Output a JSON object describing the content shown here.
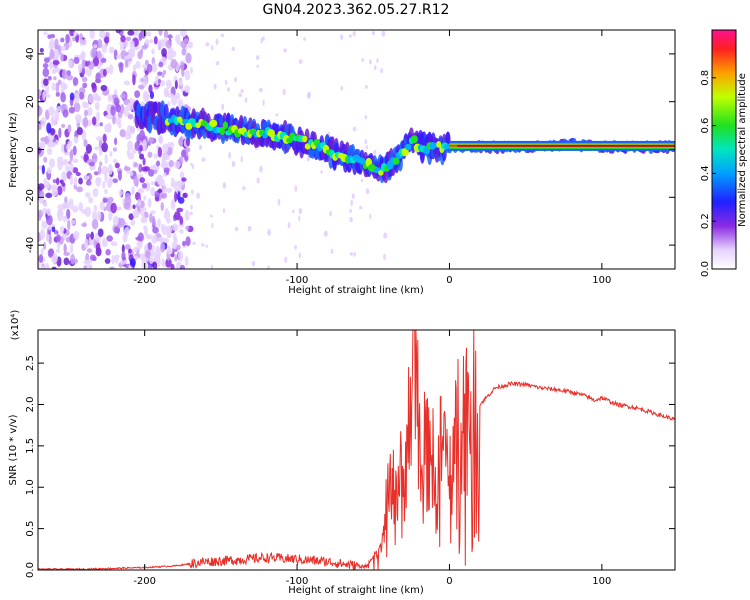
{
  "title": "GN04.2023.362.05.27.R12",
  "colors": {
    "snr_line": "#e8302a",
    "spec_low": "#8a2be2",
    "spec_mid": "#00e5c0",
    "spec_high": "#ff2020",
    "axis": "#000000"
  },
  "chart_data": [
    {
      "type": "heatmap",
      "title": "",
      "xlabel": "Height of straight line (km)",
      "ylabel": "Frequency (Hz)",
      "xlim": [
        -270,
        148
      ],
      "ylim": [
        -50,
        50
      ],
      "x_ticks": [
        -200,
        -100,
        0,
        100
      ],
      "y_ticks": [
        -40,
        -20,
        0,
        20,
        40
      ],
      "ridge": {
        "x": [
          -200,
          -180,
          -160,
          -140,
          -120,
          -100,
          -85,
          -70,
          -55,
          -45,
          -38,
          -30,
          -25,
          -20,
          -10,
          0,
          10,
          30,
          60,
          80,
          100,
          148
        ],
        "y": [
          15,
          12,
          10,
          8,
          7,
          4,
          1,
          -3,
          -6,
          -9,
          -6,
          -1,
          4,
          1,
          1,
          1,
          1,
          1,
          1,
          2,
          1,
          1
        ]
      },
      "colorbar": {
        "label": "Normalized spectral amplitude",
        "range": [
          0.0,
          1.0
        ],
        "ticks": [
          0.0,
          0.2,
          0.4,
          0.6,
          0.8
        ],
        "tick_labels": [
          "0.0",
          "0.2",
          "0.4",
          "0.6",
          "0.8"
        ]
      }
    },
    {
      "type": "line",
      "title": "",
      "xlabel": "Height of straight line (km)",
      "ylabel": "SNR (10 * v/v)",
      "y_multiplier_label": "(x10⁴)",
      "xlim": [
        -270,
        148
      ],
      "ylim": [
        0,
        2.9
      ],
      "x_ticks": [
        -200,
        -100,
        0,
        100
      ],
      "y_ticks": [
        0.0,
        0.5,
        1.0,
        1.5,
        2.0,
        2.5
      ],
      "y_tick_labels": [
        "0.0",
        "0.5",
        "1.0",
        "1.5",
        "2.0",
        "2.5"
      ],
      "series": [
        {
          "x": [
            -270,
            -240,
            -200,
            -180,
            -160,
            -140,
            -120,
            -100,
            -80,
            -65,
            -55,
            -45,
            -40,
            -35,
            -30,
            -25,
            -22,
            -20,
            -18,
            -15,
            -12,
            -10,
            -5,
            0,
            5,
            10,
            15,
            20,
            30,
            40,
            50,
            60,
            70,
            80,
            90,
            95,
            100,
            110,
            120,
            130,
            140,
            148
          ],
          "y": [
            0.01,
            0.01,
            0.03,
            0.05,
            0.1,
            0.12,
            0.15,
            0.13,
            0.1,
            0.06,
            0.04,
            0.3,
            0.9,
            1.0,
            1.2,
            2.0,
            2.9,
            1.6,
            1.9,
            1.3,
            1.7,
            1.0,
            1.5,
            1.4,
            1.8,
            2.0,
            1.9,
            2.0,
            2.2,
            2.25,
            2.24,
            2.2,
            2.18,
            2.15,
            2.1,
            2.05,
            2.08,
            2.0,
            1.97,
            1.92,
            1.86,
            1.82
          ]
        }
      ]
    }
  ]
}
